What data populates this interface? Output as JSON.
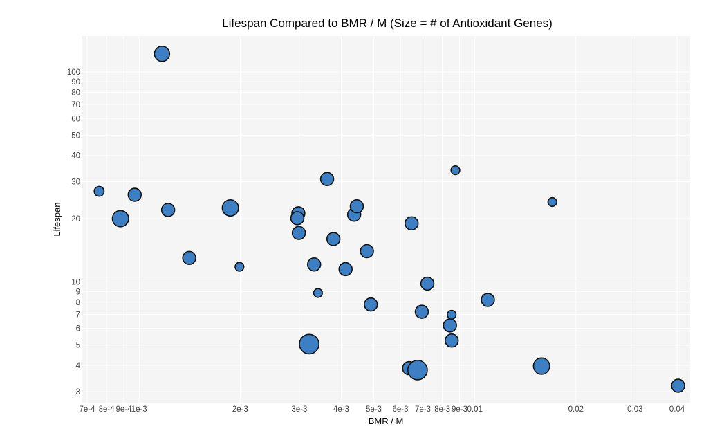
{
  "chart_data": {
    "type": "scatter",
    "title": "Lifespan Compared to BMR / M (Size = # of Antioxidant Genes)",
    "xlabel": "BMR / M",
    "ylabel": "Lifespan",
    "x_scale": "log",
    "y_scale": "log",
    "xlim": [
      0.0007,
      0.042
    ],
    "ylim": [
      2.6,
      150
    ],
    "grid": true,
    "legend": "none",
    "point_color": "#3d7fc2",
    "x_ticks": [
      {
        "value": 0.0007,
        "label": "7e-4"
      },
      {
        "value": 0.0008,
        "label": "8e-4"
      },
      {
        "value": 0.0009,
        "label": "9e-4"
      },
      {
        "value": 0.001,
        "label": "1e-3"
      },
      {
        "value": 0.002,
        "label": "2e-3"
      },
      {
        "value": 0.003,
        "label": "3e-3"
      },
      {
        "value": 0.004,
        "label": "4e-3"
      },
      {
        "value": 0.005,
        "label": "5e-3"
      },
      {
        "value": 0.006,
        "label": "6e-3"
      },
      {
        "value": 0.007,
        "label": "7e-3"
      },
      {
        "value": 0.008,
        "label": "8e-3"
      },
      {
        "value": 0.009,
        "label": "9e-3"
      },
      {
        "value": 0.01,
        "label": "0.01"
      },
      {
        "value": 0.02,
        "label": "0.02"
      },
      {
        "value": 0.03,
        "label": "0.03"
      },
      {
        "value": 0.04,
        "label": "0.04"
      }
    ],
    "y_ticks": [
      {
        "value": 3,
        "label": "3"
      },
      {
        "value": 4,
        "label": "4"
      },
      {
        "value": 5,
        "label": "5"
      },
      {
        "value": 6,
        "label": "6"
      },
      {
        "value": 7,
        "label": "7"
      },
      {
        "value": 8,
        "label": "8"
      },
      {
        "value": 9,
        "label": "9"
      },
      {
        "value": 10,
        "label": "10"
      },
      {
        "value": 20,
        "label": "20"
      },
      {
        "value": 30,
        "label": "30"
      },
      {
        "value": 40,
        "label": "40"
      },
      {
        "value": 50,
        "label": "50"
      },
      {
        "value": 60,
        "label": "60"
      },
      {
        "value": 70,
        "label": "70"
      },
      {
        "value": 80,
        "label": "80"
      },
      {
        "value": 90,
        "label": "90"
      },
      {
        "value": 100,
        "label": "100"
      }
    ],
    "points": [
      {
        "x": 0.00076,
        "y": 27,
        "genes": 6
      },
      {
        "x": 0.00088,
        "y": 20,
        "genes": 12
      },
      {
        "x": 0.00097,
        "y": 26,
        "genes": 9
      },
      {
        "x": 0.00117,
        "y": 122,
        "genes": 11
      },
      {
        "x": 0.00122,
        "y": 22,
        "genes": 9
      },
      {
        "x": 0.00141,
        "y": 13,
        "genes": 9
      },
      {
        "x": 0.00187,
        "y": 22.5,
        "genes": 12
      },
      {
        "x": 0.00199,
        "y": 11.8,
        "genes": 5
      },
      {
        "x": 0.00298,
        "y": 21.2,
        "genes": 9
      },
      {
        "x": 0.00296,
        "y": 20.1,
        "genes": 9
      },
      {
        "x": 0.00299,
        "y": 17.1,
        "genes": 9
      },
      {
        "x": 0.00321,
        "y": 5.05,
        "genes": 15
      },
      {
        "x": 0.00332,
        "y": 12.1,
        "genes": 9
      },
      {
        "x": 0.00341,
        "y": 8.85,
        "genes": 5
      },
      {
        "x": 0.00363,
        "y": 30.9,
        "genes": 9
      },
      {
        "x": 0.00379,
        "y": 16,
        "genes": 9
      },
      {
        "x": 0.00412,
        "y": 11.5,
        "genes": 9
      },
      {
        "x": 0.00437,
        "y": 20.9,
        "genes": 9
      },
      {
        "x": 0.00445,
        "y": 22.9,
        "genes": 9
      },
      {
        "x": 0.00477,
        "y": 14,
        "genes": 9
      },
      {
        "x": 0.0049,
        "y": 7.8,
        "genes": 9
      },
      {
        "x": 0.00637,
        "y": 3.88,
        "genes": 9
      },
      {
        "x": 0.00648,
        "y": 19,
        "genes": 9
      },
      {
        "x": 0.00675,
        "y": 3.8,
        "genes": 15
      },
      {
        "x": 0.00695,
        "y": 7.2,
        "genes": 9
      },
      {
        "x": 0.00722,
        "y": 9.8,
        "genes": 9
      },
      {
        "x": 0.00843,
        "y": 6.2,
        "genes": 9
      },
      {
        "x": 0.00853,
        "y": 6.97,
        "genes": 5
      },
      {
        "x": 0.00853,
        "y": 5.25,
        "genes": 9
      },
      {
        "x": 0.00875,
        "y": 34,
        "genes": 5
      },
      {
        "x": 0.01093,
        "y": 8.2,
        "genes": 9
      },
      {
        "x": 0.0158,
        "y": 3.97,
        "genes": 12
      },
      {
        "x": 0.01701,
        "y": 24,
        "genes": 5
      },
      {
        "x": 0.0403,
        "y": 3.2,
        "genes": 9
      }
    ]
  }
}
